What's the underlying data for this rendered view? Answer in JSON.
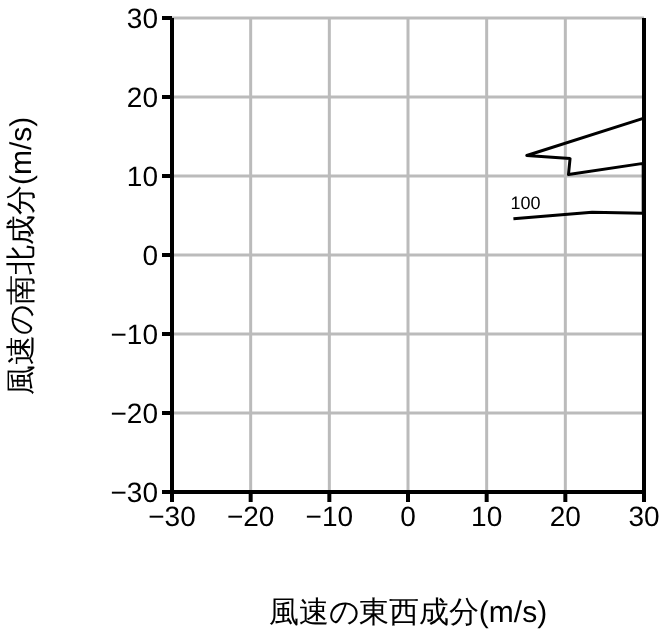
{
  "chart_data": {
    "type": "line",
    "xlabel": "風速の東西成分(m/s)",
    "ylabel": "風速の南北成分(m/s)",
    "series": [
      {
        "color": "#000000",
        "x": [
          13.4,
          23.4,
          29.9,
          29.9,
          20.4,
          20.6,
          15.1,
          29.9
        ],
        "values": [
          4.6,
          5.4,
          5.3,
          11.6,
          10.2,
          12.2,
          12.6,
          17.3
        ]
      }
    ],
    "annotations": [
      {
        "text": "100",
        "x": 13.4,
        "y": 4.6
      }
    ],
    "xlim": [
      -30,
      30
    ],
    "xticks": [
      -30,
      -20,
      -10,
      0,
      10,
      20,
      30
    ],
    "ylim": [
      -30,
      30
    ],
    "yticks": [
      -30,
      -20,
      -10,
      0,
      10,
      20,
      30
    ],
    "grid": true,
    "marker": "none",
    "line_style": "solid",
    "legend": false
  }
}
